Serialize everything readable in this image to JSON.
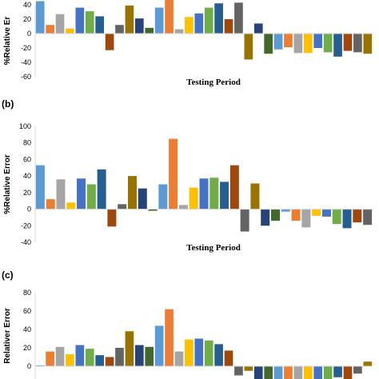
{
  "palette": [
    "#5b9bd5",
    "#ed7d31",
    "#a5a5a5",
    "#ffc000",
    "#4472c4",
    "#70ad47",
    "#255e91",
    "#9e480e",
    "#636363",
    "#997300",
    "#264478",
    "#43682b"
  ],
  "chart_data": [
    {
      "type": "bar",
      "panel_label": "",
      "ylabel": "%Relative Er",
      "xlabel": "Testing Period",
      "ylim": [
        -60,
        40
      ],
      "yticks": [
        -60,
        -40,
        -20,
        0,
        20,
        40
      ],
      "values": [
        45,
        12,
        27,
        7,
        36,
        31,
        24,
        -23,
        12,
        39,
        21,
        8,
        36,
        47,
        6,
        23,
        28,
        36,
        42,
        20,
        43,
        -36,
        14,
        -28,
        -22,
        -19,
        -27,
        -27,
        -20,
        -26,
        -32,
        -24,
        -26,
        -28
      ]
    },
    {
      "type": "bar",
      "panel_label": "(b)",
      "ylabel": "%Relative Error",
      "xlabel": "Testing Period",
      "ylim": [
        -40,
        100
      ],
      "yticks": [
        -40,
        -20,
        0,
        20,
        40,
        60,
        80,
        100
      ],
      "values": [
        53,
        12,
        36,
        8,
        37,
        30,
        48,
        -21,
        6,
        40,
        25,
        -2,
        30,
        85,
        5,
        26,
        37,
        38,
        33,
        53,
        -27,
        31,
        -20,
        -14,
        -3,
        -14,
        -22,
        -8,
        -9,
        -18,
        -23,
        -16,
        -19
      ]
    },
    {
      "type": "bar",
      "panel_label": "(c)",
      "ylabel": "Relativer Error",
      "xlabel": "",
      "ylim": [
        -20,
        80
      ],
      "yticks": [
        0,
        20,
        40,
        60,
        80
      ],
      "values": [
        1,
        16,
        21,
        13,
        23,
        19,
        12,
        10,
        20,
        38,
        23,
        21,
        44,
        62,
        16,
        29,
        30,
        28,
        24,
        17,
        -10,
        -5,
        -15,
        -15,
        -15,
        -15,
        -15,
        -15,
        -15,
        -15,
        -12,
        -15,
        -8,
        5
      ]
    }
  ]
}
